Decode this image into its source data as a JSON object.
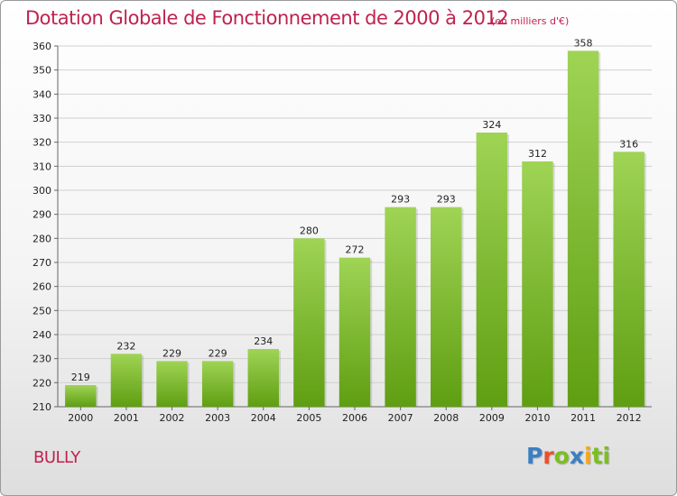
{
  "header": {
    "title": "Dotation Globale de Fonctionnement de 2000 à 2012",
    "subtitle": "(en milliers d'€)"
  },
  "footer": {
    "commune": "BULLY",
    "logo_letters": [
      "P",
      "r",
      "o",
      "x",
      "i",
      "ti"
    ]
  },
  "colors": {
    "title": "#c0224f",
    "bar_top": "#9fd455",
    "bar_bottom": "#5f9e12",
    "grid": "#d0d0d0"
  },
  "chart_data": {
    "type": "bar",
    "title": "Dotation Globale de Fonctionnement de 2000 à 2012",
    "subtitle": "(en milliers d'€)",
    "xlabel": "",
    "ylabel": "",
    "categories": [
      "2000",
      "2001",
      "2002",
      "2003",
      "2004",
      "2005",
      "2006",
      "2007",
      "2008",
      "2009",
      "2010",
      "2011",
      "2012"
    ],
    "values": [
      219,
      232,
      229,
      229,
      234,
      280,
      272,
      293,
      293,
      324,
      312,
      358,
      316
    ],
    "ylim": [
      210,
      360
    ],
    "yticks": [
      210,
      220,
      230,
      240,
      250,
      260,
      270,
      280,
      290,
      300,
      310,
      320,
      330,
      340,
      350,
      360
    ],
    "grid": true,
    "legend": "none"
  }
}
